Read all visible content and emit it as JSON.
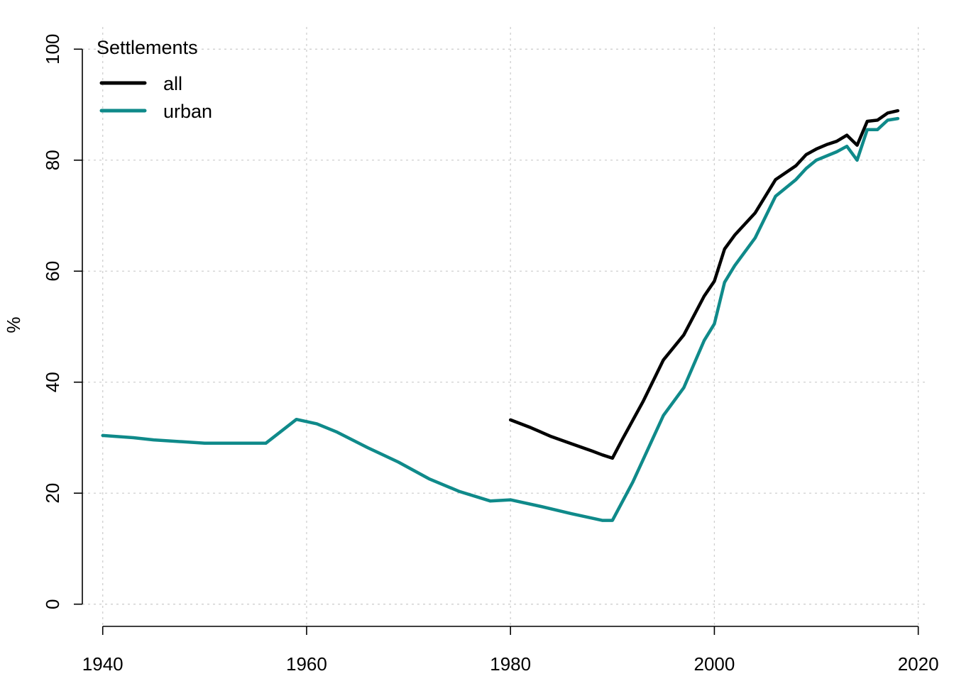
{
  "chart_data": {
    "type": "line",
    "title": "",
    "xlabel": "",
    "ylabel": "%",
    "xlim": [
      1938,
      2021
    ],
    "ylim": [
      -4,
      104
    ],
    "x_ticks": [
      1940,
      1960,
      1980,
      2000,
      2020
    ],
    "y_ticks": [
      0,
      20,
      40,
      60,
      80,
      100
    ],
    "grid": true,
    "legend": {
      "title": "Settlements",
      "position": "top-left"
    },
    "series": [
      {
        "name": "all",
        "color": "#000000",
        "points": [
          [
            1980,
            33.2
          ],
          [
            1982,
            31.8
          ],
          [
            1984,
            30.2
          ],
          [
            1986,
            28.9
          ],
          [
            1988,
            27.6
          ],
          [
            1989,
            26.9
          ],
          [
            1990,
            26.3
          ],
          [
            1991,
            29.8
          ],
          [
            1993,
            36.5
          ],
          [
            1995,
            44.0
          ],
          [
            1997,
            48.5
          ],
          [
            1999,
            55.5
          ],
          [
            2000,
            58.2
          ],
          [
            2001,
            64.0
          ],
          [
            2002,
            66.5
          ],
          [
            2004,
            70.5
          ],
          [
            2006,
            76.5
          ],
          [
            2008,
            79.0
          ],
          [
            2009,
            81.0
          ],
          [
            2010,
            82.0
          ],
          [
            2011,
            82.8
          ],
          [
            2012,
            83.4
          ],
          [
            2013,
            84.5
          ],
          [
            2014,
            82.7
          ],
          [
            2015,
            87.0
          ],
          [
            2016,
            87.2
          ],
          [
            2017,
            88.5
          ],
          [
            2018,
            88.9
          ]
        ]
      },
      {
        "name": "urban",
        "color": "#0F8A8A",
        "points": [
          [
            1940,
            30.4
          ],
          [
            1943,
            30.0
          ],
          [
            1945,
            29.6
          ],
          [
            1950,
            29.0
          ],
          [
            1956,
            29.0
          ],
          [
            1959,
            33.3
          ],
          [
            1961,
            32.5
          ],
          [
            1963,
            31.0
          ],
          [
            1966,
            28.2
          ],
          [
            1969,
            25.6
          ],
          [
            1972,
            22.6
          ],
          [
            1975,
            20.3
          ],
          [
            1978,
            18.6
          ],
          [
            1980,
            18.8
          ],
          [
            1983,
            17.6
          ],
          [
            1986,
            16.3
          ],
          [
            1988,
            15.5
          ],
          [
            1989,
            15.1
          ],
          [
            1990,
            15.1
          ],
          [
            1992,
            22.0
          ],
          [
            1995,
            34.0
          ],
          [
            1997,
            39.0
          ],
          [
            1999,
            47.5
          ],
          [
            2000,
            50.5
          ],
          [
            2001,
            58.0
          ],
          [
            2002,
            61.0
          ],
          [
            2004,
            66.0
          ],
          [
            2006,
            73.5
          ],
          [
            2008,
            76.5
          ],
          [
            2009,
            78.5
          ],
          [
            2010,
            80.0
          ],
          [
            2012,
            81.5
          ],
          [
            2013,
            82.5
          ],
          [
            2014,
            80.0
          ],
          [
            2015,
            85.5
          ],
          [
            2016,
            85.5
          ],
          [
            2017,
            87.2
          ],
          [
            2018,
            87.5
          ]
        ]
      }
    ]
  }
}
